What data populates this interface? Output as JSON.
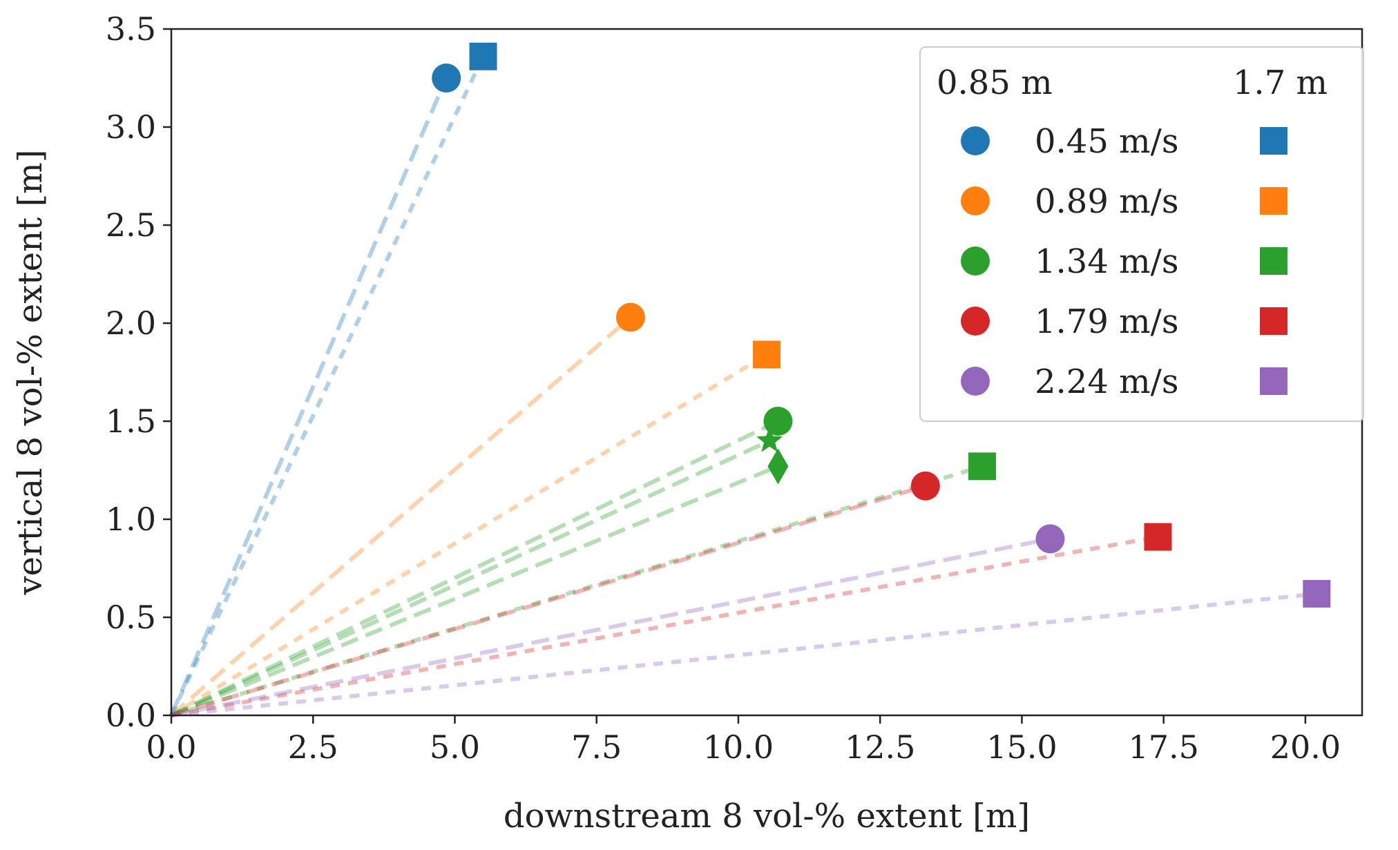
{
  "chart_data": {
    "type": "scatter",
    "title": "",
    "xlabel": "downstream 8 vol-% extent [m]",
    "ylabel": "vertical 8 vol-% extent [m]",
    "xlim": [
      0,
      21
    ],
    "ylim": [
      0,
      3.5
    ],
    "xticks": [
      "0.0",
      "2.5",
      "5.0",
      "7.5",
      "10.0",
      "12.5",
      "15.0",
      "17.5",
      "20.0"
    ],
    "xtick_values": [
      0,
      2.5,
      5,
      7.5,
      10,
      12.5,
      15,
      17.5,
      20
    ],
    "yticks": [
      "0.0",
      "0.5",
      "1.0",
      "1.5",
      "2.0",
      "2.5",
      "3.0",
      "3.5"
    ],
    "ytick_values": [
      0,
      0.5,
      1.0,
      1.5,
      2.0,
      2.5,
      3.0,
      3.5
    ],
    "grid": false,
    "legend": {
      "placement": "top-right",
      "col_headers": [
        "0.85 m",
        "1.7 m"
      ],
      "entries": [
        "0.45 m/s",
        "0.89 m/s",
        "1.34 m/s",
        "1.79 m/s",
        "2.24 m/s"
      ]
    },
    "series": [
      {
        "name": "0.45 m/s",
        "color": "#1f77b4",
        "points": [
          {
            "height": "0.85 m",
            "marker": "circle",
            "x": 4.85,
            "y": 3.25
          },
          {
            "height": "1.7 m",
            "marker": "square",
            "x": 5.5,
            "y": 3.36
          }
        ]
      },
      {
        "name": "0.89 m/s",
        "color": "#ff7f0e",
        "points": [
          {
            "height": "0.85 m",
            "marker": "circle",
            "x": 8.1,
            "y": 2.03
          },
          {
            "height": "1.7 m",
            "marker": "square",
            "x": 10.5,
            "y": 1.84
          }
        ]
      },
      {
        "name": "1.34 m/s",
        "color": "#2ca02c",
        "points": [
          {
            "height": "0.85 m",
            "marker": "circle",
            "x": 10.7,
            "y": 1.5
          },
          {
            "height": "0.85 m",
            "marker": "star",
            "x": 10.55,
            "y": 1.4
          },
          {
            "height": "0.85 m",
            "marker": "diamond",
            "x": 10.7,
            "y": 1.27
          },
          {
            "height": "1.7 m",
            "marker": "square",
            "x": 14.3,
            "y": 1.27
          }
        ]
      },
      {
        "name": "1.79 m/s",
        "color": "#d62728",
        "points": [
          {
            "height": "0.85 m",
            "marker": "circle",
            "x": 13.3,
            "y": 1.17
          },
          {
            "height": "1.7 m",
            "marker": "square",
            "x": 17.4,
            "y": 0.91
          }
        ]
      },
      {
        "name": "2.24 m/s",
        "color": "#9467bd",
        "points": [
          {
            "height": "0.85 m",
            "marker": "circle",
            "x": 15.5,
            "y": 0.9
          },
          {
            "height": "1.7 m",
            "marker": "square",
            "x": 20.2,
            "y": 0.62
          }
        ]
      }
    ]
  }
}
